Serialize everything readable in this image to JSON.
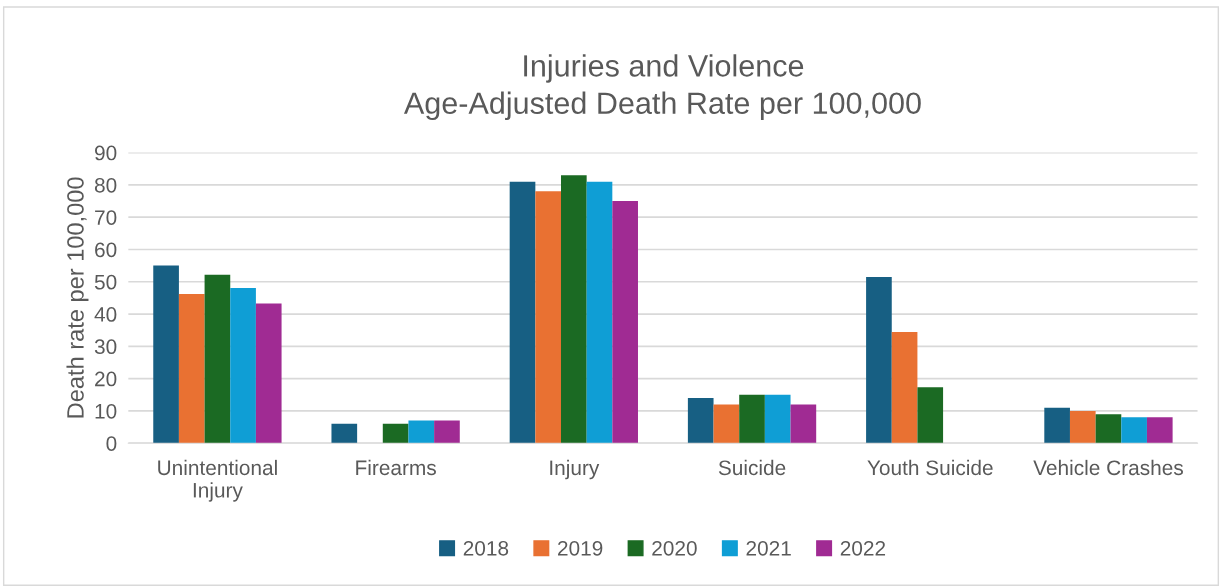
{
  "chart_data": {
    "type": "bar",
    "title": "Injuries and Violence\nAge-Adjusted Death Rate per 100,000",
    "ylabel": "Death rate per 100,000",
    "categories": [
      "Unintentional\nInjury",
      "Firearms",
      "Injury",
      "Suicide",
      "Youth Suicide",
      "Vehicle Crashes"
    ],
    "series": [
      {
        "name": "2018",
        "color": "#175f83",
        "values": [
          55,
          6,
          81,
          14,
          51.5,
          11
        ]
      },
      {
        "name": "2019",
        "color": "#e97132",
        "values": [
          46.2,
          null,
          78,
          12,
          34.4,
          10
        ]
      },
      {
        "name": "2020",
        "color": "#1b6a23",
        "values": [
          52.2,
          6,
          83,
          15,
          17.3,
          9
        ]
      },
      {
        "name": "2021",
        "color": "#0f9ed5",
        "values": [
          48.1,
          7,
          81,
          15,
          null,
          8
        ]
      },
      {
        "name": "2022",
        "color": "#a02b93",
        "values": [
          43.3,
          7,
          75,
          12,
          null,
          8
        ]
      }
    ],
    "ylim": [
      0,
      90
    ],
    "yticks": [
      0,
      10,
      20,
      30,
      40,
      50,
      60,
      70,
      80,
      90
    ],
    "grid": "y",
    "legend": "bottom"
  }
}
